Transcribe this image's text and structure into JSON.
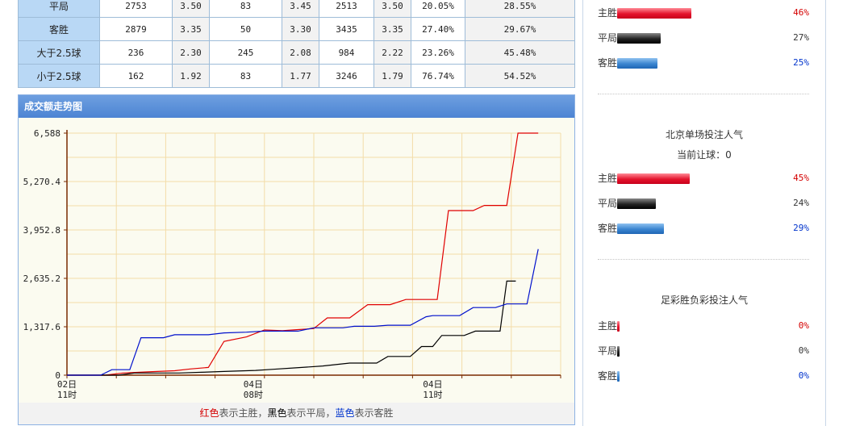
{
  "stats_table": {
    "rows": [
      {
        "label": "平局",
        "c1": "2753",
        "c2": "3.50",
        "c3": "83",
        "c4": "3.45",
        "c5": "2513",
        "c6": "3.50",
        "c7": "20.05%",
        "c8": "28.55%"
      },
      {
        "label": "客胜",
        "c1": "2879",
        "c2": "3.35",
        "c3": "50",
        "c4": "3.30",
        "c5": "3435",
        "c6": "3.35",
        "c7": "27.40%",
        "c8": "29.67%"
      },
      {
        "label": "大于2.5球",
        "c1": "236",
        "c2": "2.30",
        "c3": "245",
        "c4": "2.08",
        "c5": "984",
        "c6": "2.22",
        "c7": "23.26%",
        "c8": "45.48%"
      },
      {
        "label": "小于2.5球",
        "c1": "162",
        "c2": "1.92",
        "c3": "83",
        "c4": "1.77",
        "c5": "3246",
        "c6": "1.79",
        "c7": "76.74%",
        "c8": "54.52%"
      }
    ]
  },
  "chart_panel": {
    "title": "成交额走势图",
    "note": {
      "red_word": "红色",
      "red_text": "表示主胜，",
      "black_word": "黑色",
      "black_text": "表示平局，",
      "blue_word": "蓝色",
      "blue_text": "表示客胜"
    }
  },
  "chart_data": {
    "type": "line",
    "title": "成交额走势图",
    "ylim": [
      0,
      6588
    ],
    "yticks": [
      "0",
      "1,317.6",
      "2,635.2",
      "3,952.8",
      "5,270.4",
      "6,588"
    ],
    "ytick_values": [
      0,
      1317.6,
      2635.2,
      3952.8,
      5270.4,
      6588
    ],
    "xlim": [
      0,
      22
    ],
    "xticks": [
      {
        "x": 0,
        "top": "02日",
        "bottom": "11时"
      },
      {
        "x": 8.3,
        "top": "04日",
        "bottom": "08时"
      },
      {
        "x": 16.3,
        "top": "04日",
        "bottom": "11时"
      }
    ],
    "series": [
      {
        "name": "主胜",
        "color": "#e00000",
        "points": [
          [
            0,
            0
          ],
          [
            1.7,
            0
          ],
          [
            2.5,
            60
          ],
          [
            3.6,
            90
          ],
          [
            4.8,
            120
          ],
          [
            5.5,
            170
          ],
          [
            6.3,
            210
          ],
          [
            7.0,
            920
          ],
          [
            8.0,
            1040
          ],
          [
            8.8,
            1230
          ],
          [
            9.6,
            1210
          ],
          [
            10.3,
            1240
          ],
          [
            11.0,
            1270
          ],
          [
            11.6,
            1560
          ],
          [
            12.6,
            1560
          ],
          [
            13.4,
            1920
          ],
          [
            14.4,
            1920
          ],
          [
            15.1,
            2060
          ],
          [
            16.5,
            2060
          ],
          [
            17.0,
            4480
          ],
          [
            18.1,
            4480
          ],
          [
            18.6,
            4620
          ],
          [
            19.6,
            4620
          ],
          [
            20.1,
            6588
          ],
          [
            21.0,
            6588
          ]
        ]
      },
      {
        "name": "平局",
        "color": "#000000",
        "points": [
          [
            0,
            0
          ],
          [
            2.3,
            0
          ],
          [
            3.0,
            60
          ],
          [
            5.0,
            60
          ],
          [
            6.0,
            80
          ],
          [
            7.0,
            100
          ],
          [
            8.4,
            130
          ],
          [
            9.2,
            160
          ],
          [
            10.2,
            200
          ],
          [
            11.4,
            250
          ],
          [
            12.6,
            330
          ],
          [
            13.8,
            330
          ],
          [
            14.3,
            510
          ],
          [
            15.3,
            510
          ],
          [
            15.8,
            780
          ],
          [
            16.3,
            780
          ],
          [
            16.7,
            1080
          ],
          [
            17.7,
            1080
          ],
          [
            18.2,
            1200
          ],
          [
            19.3,
            1200
          ],
          [
            19.6,
            2560
          ],
          [
            20.0,
            2560
          ]
        ]
      },
      {
        "name": "客胜",
        "color": "#0010cc",
        "points": [
          [
            0,
            0
          ],
          [
            1.5,
            0
          ],
          [
            2.0,
            150
          ],
          [
            2.8,
            150
          ],
          [
            3.3,
            1020
          ],
          [
            4.3,
            1020
          ],
          [
            4.8,
            1100
          ],
          [
            6.3,
            1100
          ],
          [
            7.0,
            1150
          ],
          [
            8.0,
            1170
          ],
          [
            8.8,
            1200
          ],
          [
            10.3,
            1200
          ],
          [
            11.0,
            1290
          ],
          [
            12.3,
            1290
          ],
          [
            12.8,
            1330
          ],
          [
            13.7,
            1330
          ],
          [
            14.3,
            1360
          ],
          [
            15.3,
            1360
          ],
          [
            16.0,
            1590
          ],
          [
            16.3,
            1620
          ],
          [
            17.5,
            1620
          ],
          [
            18.1,
            1840
          ],
          [
            19.1,
            1840
          ],
          [
            19.6,
            1940
          ],
          [
            20.5,
            1940
          ],
          [
            21.0,
            3430
          ]
        ]
      }
    ]
  },
  "popularity": [
    {
      "title": "",
      "subtitle": "",
      "items": [
        {
          "label": "主胜",
          "pct": "46%",
          "value": 46,
          "color": "red"
        },
        {
          "label": "平局",
          "pct": "27%",
          "value": 27,
          "color": "black"
        },
        {
          "label": "客胜",
          "pct": "25%",
          "value": 25,
          "color": "blue"
        }
      ]
    },
    {
      "title": "北京单场投注人气",
      "subtitle": "当前让球：0",
      "items": [
        {
          "label": "主胜",
          "pct": "45%",
          "value": 45,
          "color": "red"
        },
        {
          "label": "平局",
          "pct": "24%",
          "value": 24,
          "color": "black"
        },
        {
          "label": "客胜",
          "pct": "29%",
          "value": 29,
          "color": "blue"
        }
      ]
    },
    {
      "title": "足彩胜负彩投注人气",
      "subtitle": "",
      "items": [
        {
          "label": "主胜",
          "pct": "0%",
          "value": 0,
          "color": "red"
        },
        {
          "label": "平局",
          "pct": "0%",
          "value": 0,
          "color": "black"
        },
        {
          "label": "客胜",
          "pct": "0%",
          "value": 0,
          "color": "blue"
        }
      ]
    }
  ],
  "colors": {
    "red": "#d40000",
    "black": "#333333",
    "blue": "#0033cc",
    "header_blue": "#4c84d3",
    "row_label_blue": "#b9d8f5"
  }
}
